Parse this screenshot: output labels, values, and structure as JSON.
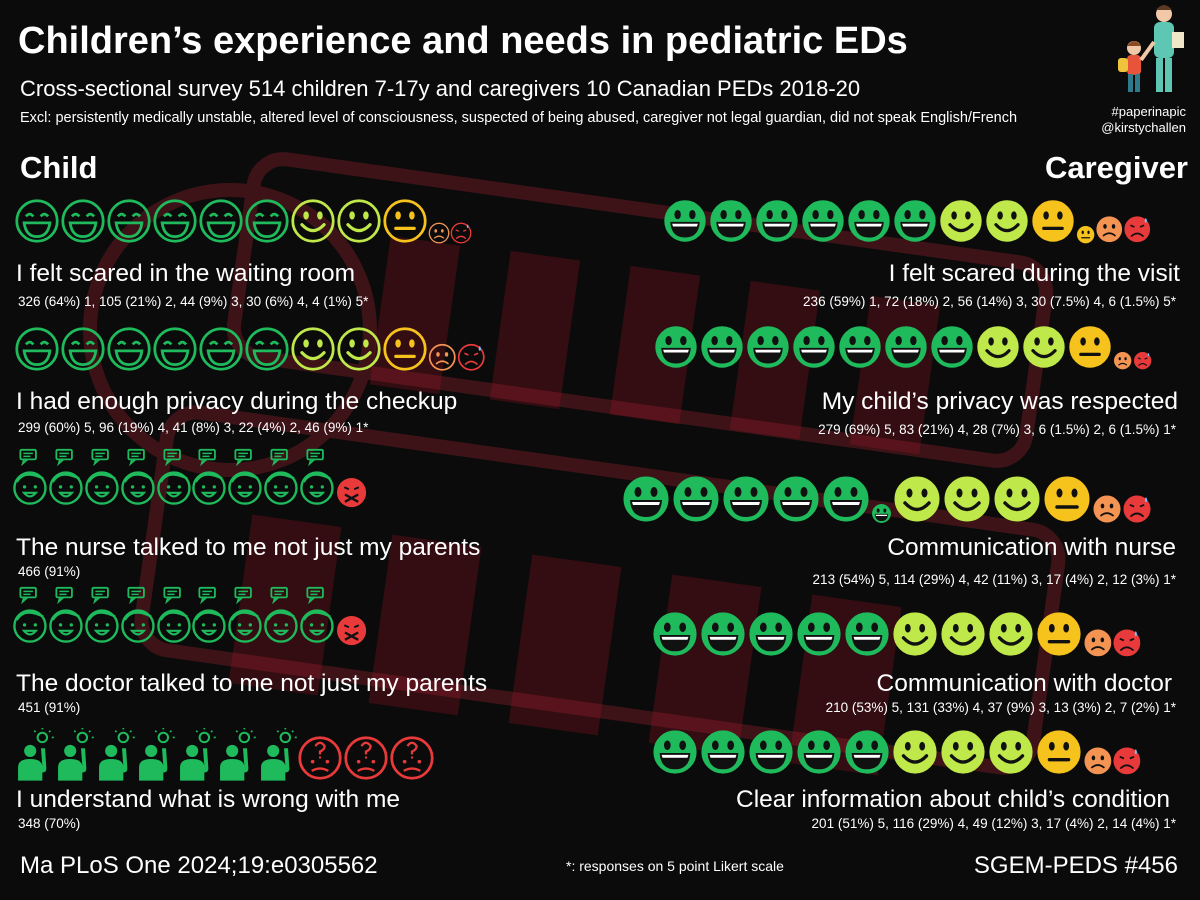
{
  "header": {
    "title": "Children’s experience and needs in pediatric EDs",
    "subtitle": "Cross-sectional survey 514 children 7-17y and caregivers 10 Canadian PEDs 2018-20",
    "exclusions": "Excl: persistently medically unstable, altered level of consciousness, suspected of being abused, caregiver not legal guardian, did not speak English/French"
  },
  "branding": {
    "hashtag": "#paperinapic",
    "handle": "@kirstychallen"
  },
  "columns": {
    "child": "Child",
    "caregiver": "Caregiver"
  },
  "colors": {
    "dark_green": "#1fba5c",
    "light_green": "#bfe84a",
    "yellow": "#f6c21c",
    "orange": "#f39452",
    "red": "#e83a3a",
    "background": "#0b0b0b"
  },
  "child": [
    {
      "label": "I felt scared in the waiting room",
      "stat": "326 (64%) 1, 105 (21%) 2, 44 (9%) 3, 30 (6%) 4, 4 (1%) 5*",
      "icons": [
        "dark-green-face",
        "dark-green-face",
        "dark-green-face",
        "dark-green-face",
        "dark-green-face",
        "dark-green-face",
        "light-green-face",
        "light-green-face",
        "yellow-face",
        "orange-face",
        "red-face"
      ]
    },
    {
      "label": "I had enough privacy during the checkup",
      "stat": "299 (60%) 5, 96 (19%) 4, 41 (8%) 3, 22 (4%) 2, 46 (9%) 1*",
      "icons": [
        "dark-green-face",
        "dark-green-face",
        "dark-green-face",
        "dark-green-face",
        "dark-green-face",
        "dark-green-face",
        "light-green-face",
        "light-green-face",
        "yellow-face",
        "orange-face",
        "red-face"
      ]
    },
    {
      "label": "The nurse talked to me not just my parents",
      "stat": "466 (91%)",
      "icons": [
        "child-talking-icon",
        "child-talking-icon",
        "child-talking-icon",
        "child-talking-icon",
        "child-talking-icon",
        "child-talking-icon",
        "child-talking-icon",
        "child-talking-icon",
        "child-talking-icon",
        "silenced-face-icon"
      ]
    },
    {
      "label": "The doctor talked to me not just my parents",
      "stat": "451 (91%)",
      "icons": [
        "child-talking-icon",
        "child-talking-icon",
        "child-talking-icon",
        "child-talking-icon",
        "child-talking-icon",
        "child-talking-icon",
        "child-talking-icon",
        "child-talking-icon",
        "child-talking-icon",
        "silenced-face-icon"
      ]
    },
    {
      "label": "I understand what is wrong with me",
      "stat": "348 (70%)",
      "icons": [
        "idea-person-icon",
        "idea-person-icon",
        "idea-person-icon",
        "idea-person-icon",
        "idea-person-icon",
        "idea-person-icon",
        "idea-person-icon",
        "confused-face-icon",
        "confused-face-icon",
        "confused-face-icon"
      ]
    }
  ],
  "caregiver": [
    {
      "label": "I felt scared during the visit",
      "stat": "236 (59%) 1, 72 (18%) 2, 56 (14%) 3, 30 (7.5%) 4, 6 (1.5%) 5*",
      "icons": [
        "dark-green-face",
        "dark-green-face",
        "dark-green-face",
        "dark-green-face",
        "dark-green-face",
        "dark-green-face",
        "light-green-face",
        "light-green-face",
        "yellow-face",
        "small-yellow-face",
        "orange-face",
        "red-face"
      ]
    },
    {
      "label": "My child’s privacy was respected",
      "stat": "279 (69%) 5, 83 (21%) 4, 28 (7%) 3, 6 (1.5%) 2, 6 (1.5%) 1*",
      "icons": [
        "dark-green-face",
        "dark-green-face",
        "dark-green-face",
        "dark-green-face",
        "dark-green-face",
        "dark-green-face",
        "dark-green-face",
        "light-green-face",
        "light-green-face",
        "yellow-face",
        "small-orange-face",
        "small-red-face"
      ]
    },
    {
      "label": "Communication with nurse",
      "stat": "213 (54%) 5, 114 (29%) 4, 42 (11%) 3, 17 (4%) 2, 12 (3%) 1*",
      "icons": [
        "dark-green-face",
        "dark-green-face",
        "dark-green-face",
        "dark-green-face",
        "dark-green-face",
        "small-dark-green-face",
        "light-green-face",
        "light-green-face",
        "light-green-face",
        "yellow-face",
        "orange-face",
        "red-face"
      ]
    },
    {
      "label": "Communication with doctor",
      "stat": "210 (53%) 5, 131 (33%) 4, 37 (9%) 3, 13 (3%) 2, 7 (2%) 1*",
      "icons": [
        "dark-green-face",
        "dark-green-face",
        "dark-green-face",
        "dark-green-face",
        "dark-green-face",
        "light-green-face",
        "light-green-face",
        "light-green-face",
        "yellow-face",
        "orange-face",
        "red-face"
      ]
    },
    {
      "label": "Clear information about child’s condition",
      "stat": "201 (51%) 5, 116 (29%) 4, 49 (12%) 3, 17 (4%) 2, 14 (4%) 1*",
      "icons": [
        "dark-green-face",
        "dark-green-face",
        "dark-green-face",
        "dark-green-face",
        "dark-green-face",
        "light-green-face",
        "light-green-face",
        "light-green-face",
        "yellow-face",
        "orange-face",
        "red-face"
      ]
    }
  ],
  "footer": {
    "citation": "Ma PLoS One 2024;19:e0305562",
    "note": "*: responses on 5 point Likert scale",
    "series": "SGEM-PEDS #456"
  }
}
